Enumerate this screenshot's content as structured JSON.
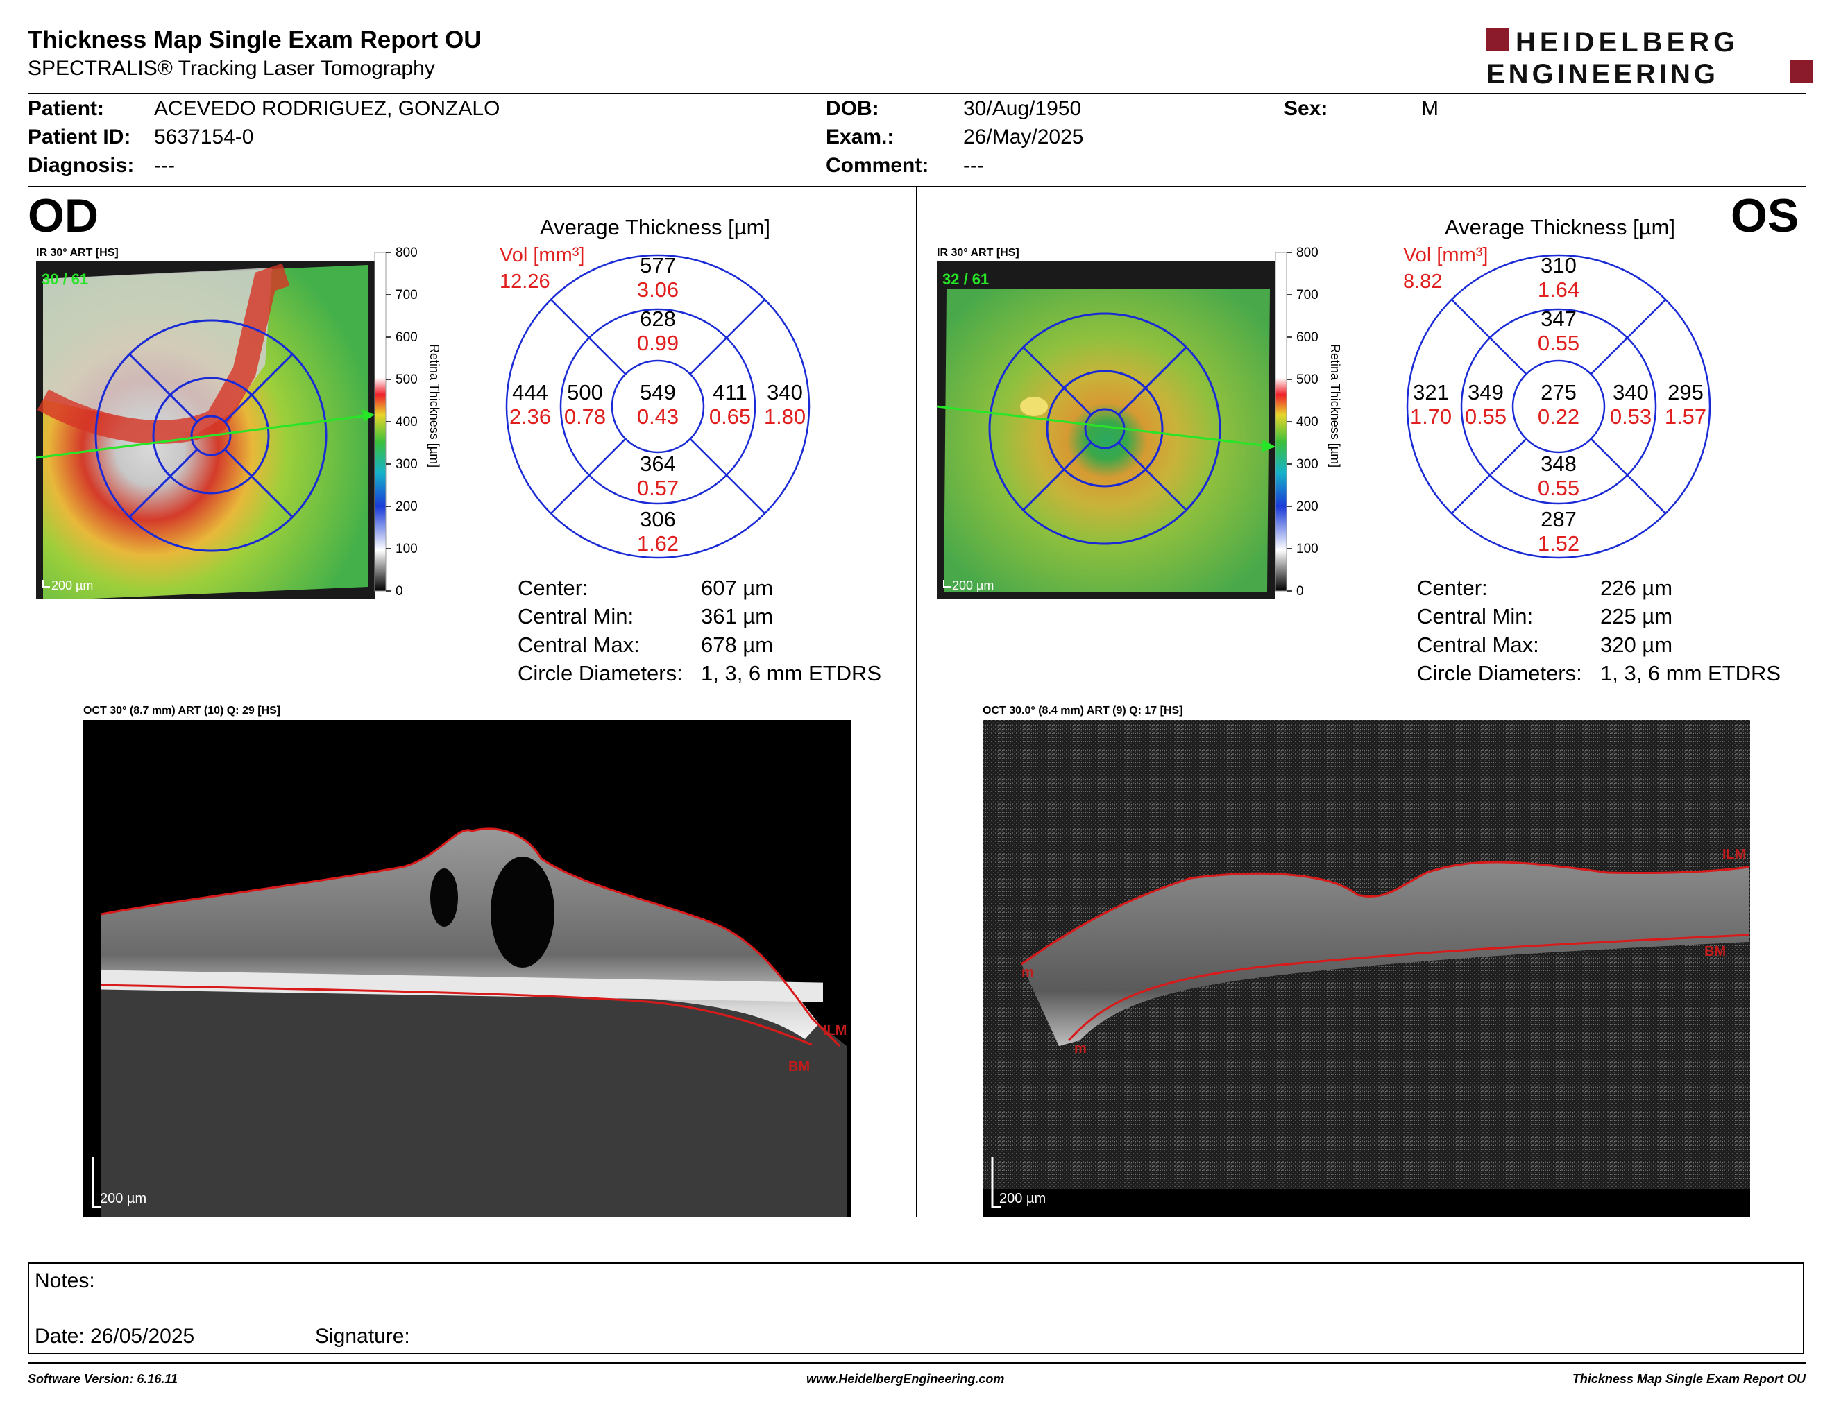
{
  "header": {
    "title": "Thickness Map Single Exam Report OU",
    "subtitle": "SPECTRALIS® Tracking Laser Tomography",
    "logo_line1": "HEIDELBERG",
    "logo_line2": "ENGINEERING",
    "brand_color": "#8b1a2b"
  },
  "patient": {
    "patient_label": "Patient:",
    "patient_value": "ACEVEDO RODRIGUEZ, GONZALO",
    "id_label": "Patient ID:",
    "id_value": "5637154-0",
    "diagnosis_label": "Diagnosis:",
    "diagnosis_value": "---",
    "dob_label": "DOB:",
    "dob_value": "30/Aug/1950",
    "exam_label": "Exam.:",
    "exam_value": "26/May/2025",
    "comment_label": "Comment:",
    "comment_value": "---",
    "sex_label": "Sex:",
    "sex_value": "M"
  },
  "od": {
    "eye": "OD",
    "ir_label": "IR 30° ART [HS]",
    "frames": "30 / 61",
    "scale": "200 µm",
    "avg_title": "Average Thickness [µm]",
    "vol_label": "Vol [mm³]",
    "vol_total": "12.26",
    "sectors": {
      "outer_sup": {
        "t": "577",
        "v": "3.06"
      },
      "inner_sup": {
        "t": "628",
        "v": "0.99"
      },
      "outer_left": {
        "t": "444",
        "v": "2.36"
      },
      "inner_left": {
        "t": "500",
        "v": "0.78"
      },
      "center": {
        "t": "549",
        "v": "0.43"
      },
      "inner_right": {
        "t": "411",
        "v": "0.65"
      },
      "outer_right": {
        "t": "340",
        "v": "1.80"
      },
      "inner_inf": {
        "t": "364",
        "v": "0.57"
      },
      "outer_inf": {
        "t": "306",
        "v": "1.62"
      }
    },
    "stats": [
      {
        "label": "Center:",
        "value": "607 µm"
      },
      {
        "label": "Central Min:",
        "value": "361 µm"
      },
      {
        "label": "Central Max:",
        "value": "678 µm"
      },
      {
        "label": "Circle Diameters:",
        "value": "1, 3, 6 mm ETDRS"
      }
    ],
    "oct_label": "OCT 30° (8.7 mm) ART (10) Q: 29 [HS]",
    "oct_scale": "200 µm",
    "ilm": "ILM",
    "bm": "BM"
  },
  "os": {
    "eye": "OS",
    "ir_label": "IR 30° ART [HS]",
    "frames": "32 / 61",
    "scale": "200 µm",
    "avg_title": "Average Thickness [µm]",
    "vol_label": "Vol [mm³]",
    "vol_total": "8.82",
    "sectors": {
      "outer_sup": {
        "t": "310",
        "v": "1.64"
      },
      "inner_sup": {
        "t": "347",
        "v": "0.55"
      },
      "outer_left": {
        "t": "321",
        "v": "1.70"
      },
      "inner_left": {
        "t": "349",
        "v": "0.55"
      },
      "center": {
        "t": "275",
        "v": "0.22"
      },
      "inner_right": {
        "t": "340",
        "v": "0.53"
      },
      "outer_right": {
        "t": "295",
        "v": "1.57"
      },
      "inner_inf": {
        "t": "348",
        "v": "0.55"
      },
      "outer_inf": {
        "t": "287",
        "v": "1.52"
      }
    },
    "stats": [
      {
        "label": "Center:",
        "value": "226 µm"
      },
      {
        "label": "Central Min:",
        "value": "225 µm"
      },
      {
        "label": "Central Max:",
        "value": "320 µm"
      },
      {
        "label": "Circle Diameters:",
        "value": "1, 3, 6 mm ETDRS"
      }
    ],
    "oct_label": "OCT 30.0° (8.4 mm) ART (9) Q: 17 [HS]",
    "oct_scale": "200 µm",
    "ilm": "ILM",
    "bm": "BM",
    "m_upper": "m",
    "m_lower": "m"
  },
  "colorbar": {
    "ticks": [
      "800",
      "700",
      "600",
      "500",
      "400",
      "300",
      "200",
      "100",
      "0"
    ],
    "title": "Retina  Thickness [µm]"
  },
  "notes": {
    "notes_label": "Notes:",
    "date_label": "Date: 26/05/2025",
    "signature_label": "Signature:"
  },
  "footer": {
    "software": "Software Version: 6.16.11",
    "website": "www.HeidelbergEngineering.com",
    "report": "Thickness Map Single Exam Report OU"
  }
}
